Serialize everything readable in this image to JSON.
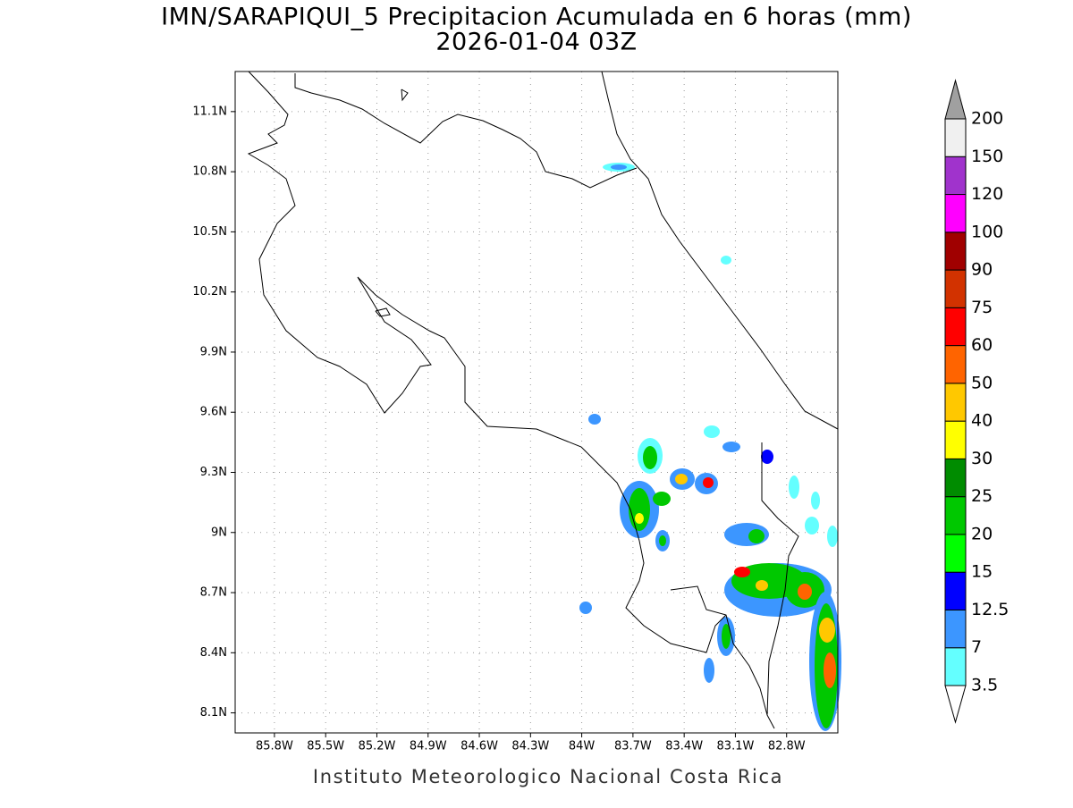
{
  "title": "IMN/SARAPIQUI_5 Precipitacion Acumulada en 6 horas (mm)",
  "subtitle": "2026-01-04 03Z",
  "map": {
    "xlim": [
      -86.03,
      -82.5
    ],
    "ylim": [
      8.0,
      11.3
    ],
    "xticks": [
      {
        "value": -85.8,
        "label": "85.8W"
      },
      {
        "value": -85.5,
        "label": "85.5W"
      },
      {
        "value": -85.2,
        "label": "85.2W"
      },
      {
        "value": -84.9,
        "label": "84.9W"
      },
      {
        "value": -84.6,
        "label": "84.6W"
      },
      {
        "value": -84.3,
        "label": "84.3W"
      },
      {
        "value": -84.0,
        "label": "84W"
      },
      {
        "value": -83.7,
        "label": "83.7W"
      },
      {
        "value": -83.4,
        "label": "83.4W"
      },
      {
        "value": -83.1,
        "label": "83.1W"
      },
      {
        "value": -82.8,
        "label": "82.8W"
      }
    ],
    "yticks": [
      {
        "value": 8.1,
        "label": "8.1N"
      },
      {
        "value": 8.4,
        "label": "8.4N"
      },
      {
        "value": 8.7,
        "label": "8.7N"
      },
      {
        "value": 9.0,
        "label": "9N"
      },
      {
        "value": 9.3,
        "label": "9.3N"
      },
      {
        "value": 9.6,
        "label": "9.6N"
      },
      {
        "value": 9.9,
        "label": "9.9N"
      },
      {
        "value": 10.2,
        "label": "10.2N"
      },
      {
        "value": 10.5,
        "label": "10.5N"
      },
      {
        "value": 10.8,
        "label": "10.8N"
      },
      {
        "value": 11.1,
        "label": "11.1N"
      }
    ],
    "grid": true
  },
  "colorbar": {
    "levels": [
      3.5,
      7,
      12.5,
      15,
      20,
      25,
      30,
      40,
      50,
      60,
      75,
      90,
      100,
      120,
      150,
      200
    ],
    "colors": [
      "#64ffff",
      "#3c96ff",
      "#0000ff",
      "#00ff00",
      "#00c800",
      "#008c00",
      "#ffff00",
      "#ffc800",
      "#ff6400",
      "#ff0000",
      "#d23200",
      "#a00000",
      "#ff00ff",
      "#a033cc",
      "#f0f0f0"
    ],
    "under_color": "#ffffff",
    "over_color": "#a0a0a0"
  },
  "credit": "Instituto Meteorologico Nacional Costa Rica"
}
